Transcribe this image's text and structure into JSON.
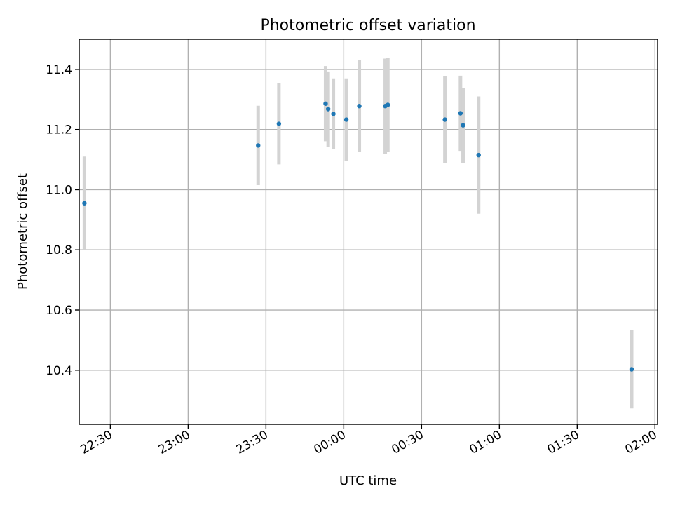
{
  "chart_data": {
    "type": "scatter",
    "title": "Photometric offset variation",
    "xlabel": "UTC time",
    "ylabel": "Photometric offset",
    "x_is_time": true,
    "x_unit": "HH:MM (UTC)",
    "xlim": [
      "22:18",
      "02:01"
    ],
    "ylim": [
      10.22,
      11.5
    ],
    "grid": true,
    "xticks": [
      "22:30",
      "23:00",
      "23:30",
      "00:00",
      "00:30",
      "01:00",
      "01:30",
      "02:00"
    ],
    "yticks": [
      10.4,
      10.6,
      10.8,
      11.0,
      11.2,
      11.4
    ],
    "colors": {
      "point": "#1f77b4",
      "errorbar": "#d3d3d3"
    },
    "series": [
      {
        "points": [
          {
            "x": "22:20",
            "y": 10.955,
            "err": 0.155
          },
          {
            "x": "23:27",
            "y": 11.147,
            "err": 0.132
          },
          {
            "x": "23:35",
            "y": 11.219,
            "err": 0.135
          },
          {
            "x": "23:53",
            "y": 11.286,
            "err": 0.125
          },
          {
            "x": "23:54",
            "y": 11.268,
            "err": 0.125
          },
          {
            "x": "23:56",
            "y": 11.252,
            "err": 0.118
          },
          {
            "x": "00:01",
            "y": 11.233,
            "err": 0.137
          },
          {
            "x": "00:06",
            "y": 11.278,
            "err": 0.153
          },
          {
            "x": "00:16",
            "y": 11.278,
            "err": 0.158
          },
          {
            "x": "00:17",
            "y": 11.282,
            "err": 0.155
          },
          {
            "x": "00:39",
            "y": 11.233,
            "err": 0.145
          },
          {
            "x": "00:45",
            "y": 11.254,
            "err": 0.125
          },
          {
            "x": "00:46",
            "y": 11.214,
            "err": 0.125
          },
          {
            "x": "00:52",
            "y": 11.115,
            "err": 0.195
          },
          {
            "x": "01:51",
            "y": 10.403,
            "err": 0.13
          }
        ]
      }
    ]
  }
}
